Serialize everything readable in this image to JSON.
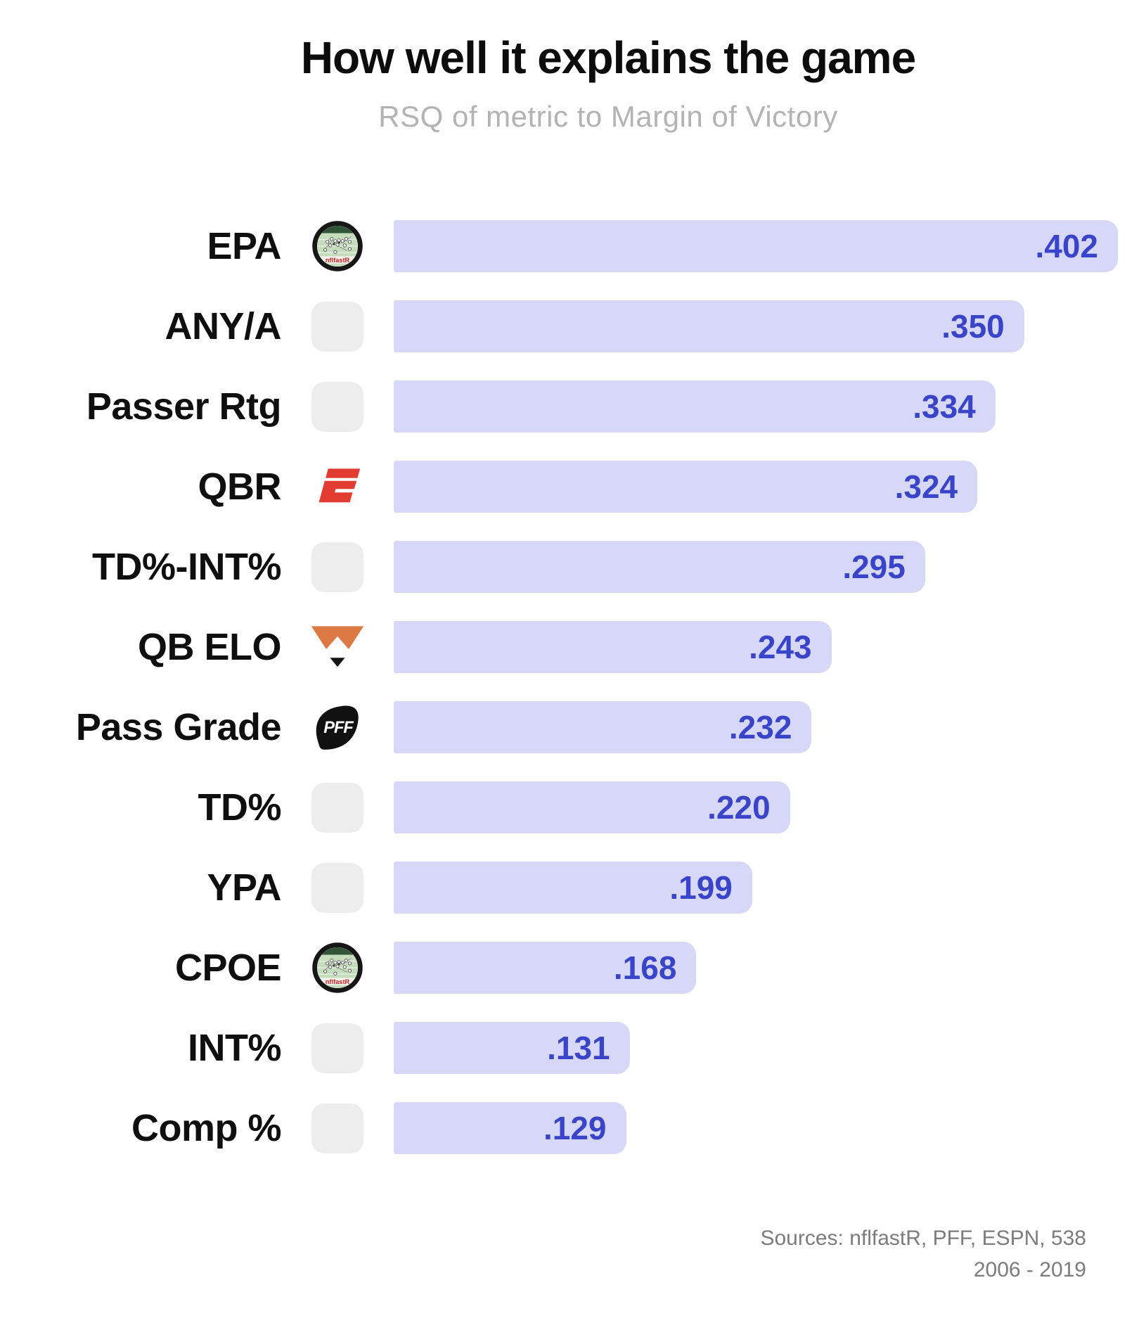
{
  "header": {
    "title": "How well it explains the game",
    "subtitle": "RSQ of metric to Margin of Victory"
  },
  "chart_data": {
    "type": "bar",
    "orientation": "horizontal",
    "title": "How well it explains the game",
    "subtitle": "RSQ of metric to Margin of Victory",
    "xlabel": "RSQ of metric to Margin of Victory",
    "xlim": [
      0,
      0.402
    ],
    "grid": false,
    "value_labels": "inside-bar-right",
    "rows": [
      {
        "label": "EPA",
        "value": 0.402,
        "display": ".402",
        "icon": "nflfastr"
      },
      {
        "label": "ANY/A",
        "value": 0.35,
        "display": ".350",
        "icon": "none"
      },
      {
        "label": "Passer Rtg",
        "value": 0.334,
        "display": ".334",
        "icon": "none"
      },
      {
        "label": "QBR",
        "value": 0.324,
        "display": ".324",
        "icon": "espn"
      },
      {
        "label": "TD%-INT%",
        "value": 0.295,
        "display": ".295",
        "icon": "none"
      },
      {
        "label": "QB ELO",
        "value": 0.243,
        "display": ".243",
        "icon": "fivethirtyeight-fox"
      },
      {
        "label": "Pass Grade",
        "value": 0.232,
        "display": ".232",
        "icon": "pff"
      },
      {
        "label": "TD%",
        "value": 0.22,
        "display": ".220",
        "icon": "none"
      },
      {
        "label": "YPA",
        "value": 0.199,
        "display": ".199",
        "icon": "none"
      },
      {
        "label": "CPOE",
        "value": 0.168,
        "display": ".168",
        "icon": "nflfastr"
      },
      {
        "label": "INT%",
        "value": 0.131,
        "display": ".131",
        "icon": "none"
      },
      {
        "label": "Comp %",
        "value": 0.129,
        "display": ".129",
        "icon": "none"
      }
    ]
  },
  "footer": {
    "sources_line1": "Sources: nflfastR, PFF, ESPN, 538",
    "sources_line2": "2006 - 2019"
  },
  "colors": {
    "bar_fill": "#d7d8f8",
    "value_text": "#3a44c8",
    "label_text": "#0f0f0f",
    "subtitle_text": "#b3b3b6",
    "sources_text": "#7c7c7c",
    "placeholder_gray": "#ededee",
    "espn_red": "#e23b2f",
    "fox_orange": "#dd7943",
    "pff_black": "#111111",
    "nflfastr_field_green": "#c5ddbc",
    "nflfastr_text_red": "#c32222"
  }
}
